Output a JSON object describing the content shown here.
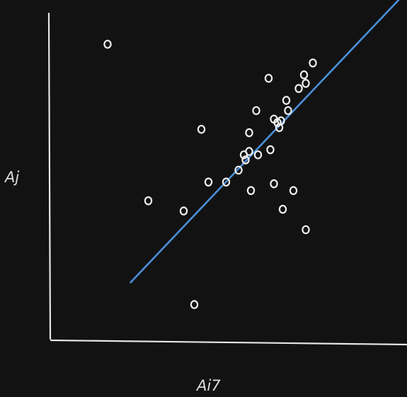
{
  "chart_data": {
    "type": "scatter",
    "xlabel": "Ai7",
    "ylabel": "Aj",
    "xlim": [
      0,
      100
    ],
    "ylim": [
      0,
      100
    ],
    "grid": false,
    "series": [
      {
        "points": [
          [
            16.0,
            87.0
          ],
          [
            27.5,
            41.0
          ],
          [
            37.5,
            38.0
          ],
          [
            42.5,
            62.0
          ],
          [
            44.5,
            46.5
          ],
          [
            40.5,
            10.5
          ],
          [
            49.5,
            46.5
          ],
          [
            53.0,
            50.0
          ],
          [
            56.0,
            61.0
          ],
          [
            55.0,
            53.0
          ],
          [
            54.5,
            54.5
          ],
          [
            56.0,
            55.5
          ],
          [
            58.5,
            54.5
          ],
          [
            56.5,
            44.0
          ],
          [
            58.0,
            67.5
          ],
          [
            62.0,
            56.0
          ],
          [
            61.5,
            77.0
          ],
          [
            63.0,
            65.0
          ],
          [
            64.0,
            64.0
          ],
          [
            64.5,
            62.5
          ],
          [
            65.0,
            64.5
          ],
          [
            66.5,
            70.5
          ],
          [
            67.0,
            67.5
          ],
          [
            63.0,
            46.0
          ],
          [
            65.5,
            38.5
          ],
          [
            70.0,
            74.0
          ],
          [
            72.0,
            75.5
          ],
          [
            71.5,
            78.0
          ],
          [
            74.0,
            81.5
          ],
          [
            68.5,
            44.0
          ],
          [
            72.0,
            32.5
          ]
        ]
      }
    ],
    "trendline": {
      "x": [
        22.5,
        100.5
      ],
      "y": [
        17.0,
        102.5
      ],
      "color": "#4a90d9"
    },
    "colors": {
      "background": "#121212",
      "axis": "#e6e6e6",
      "points": "#eeeeee"
    }
  }
}
